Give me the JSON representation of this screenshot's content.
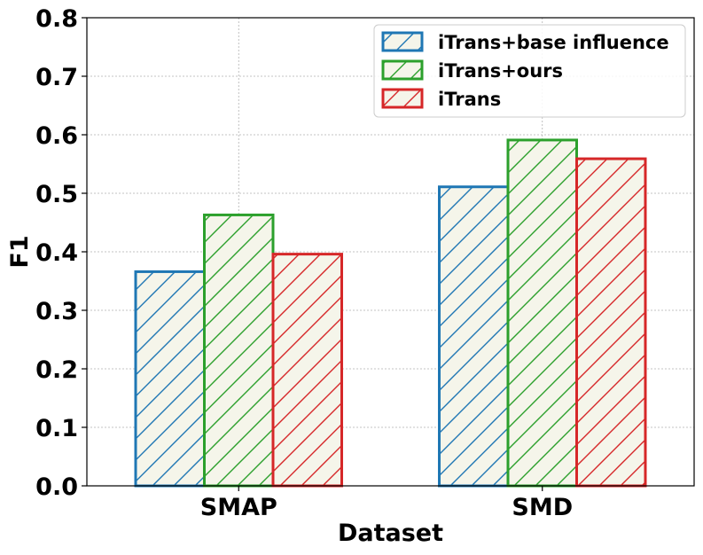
{
  "chart_data": {
    "type": "bar",
    "categories": [
      "SMAP",
      "SMD"
    ],
    "series": [
      {
        "name": "iTrans+base influence",
        "values": [
          0.366,
          0.511
        ],
        "color": "#1f77b4"
      },
      {
        "name": "iTrans+ours",
        "values": [
          0.463,
          0.591
        ],
        "color": "#2ca02c"
      },
      {
        "name": "iTrans",
        "values": [
          0.396,
          0.559
        ],
        "color": "#d62728"
      }
    ],
    "bar_fill": "#f5f5ea",
    "hatch": "/",
    "xlabel": "Dataset",
    "ylabel": "F1",
    "ylim": [
      0,
      0.8
    ],
    "yticks": [
      "0.0",
      "0.1",
      "0.2",
      "0.3",
      "0.4",
      "0.5",
      "0.6",
      "0.7",
      "0.8"
    ],
    "grid": true,
    "legend_position": "top-right"
  }
}
